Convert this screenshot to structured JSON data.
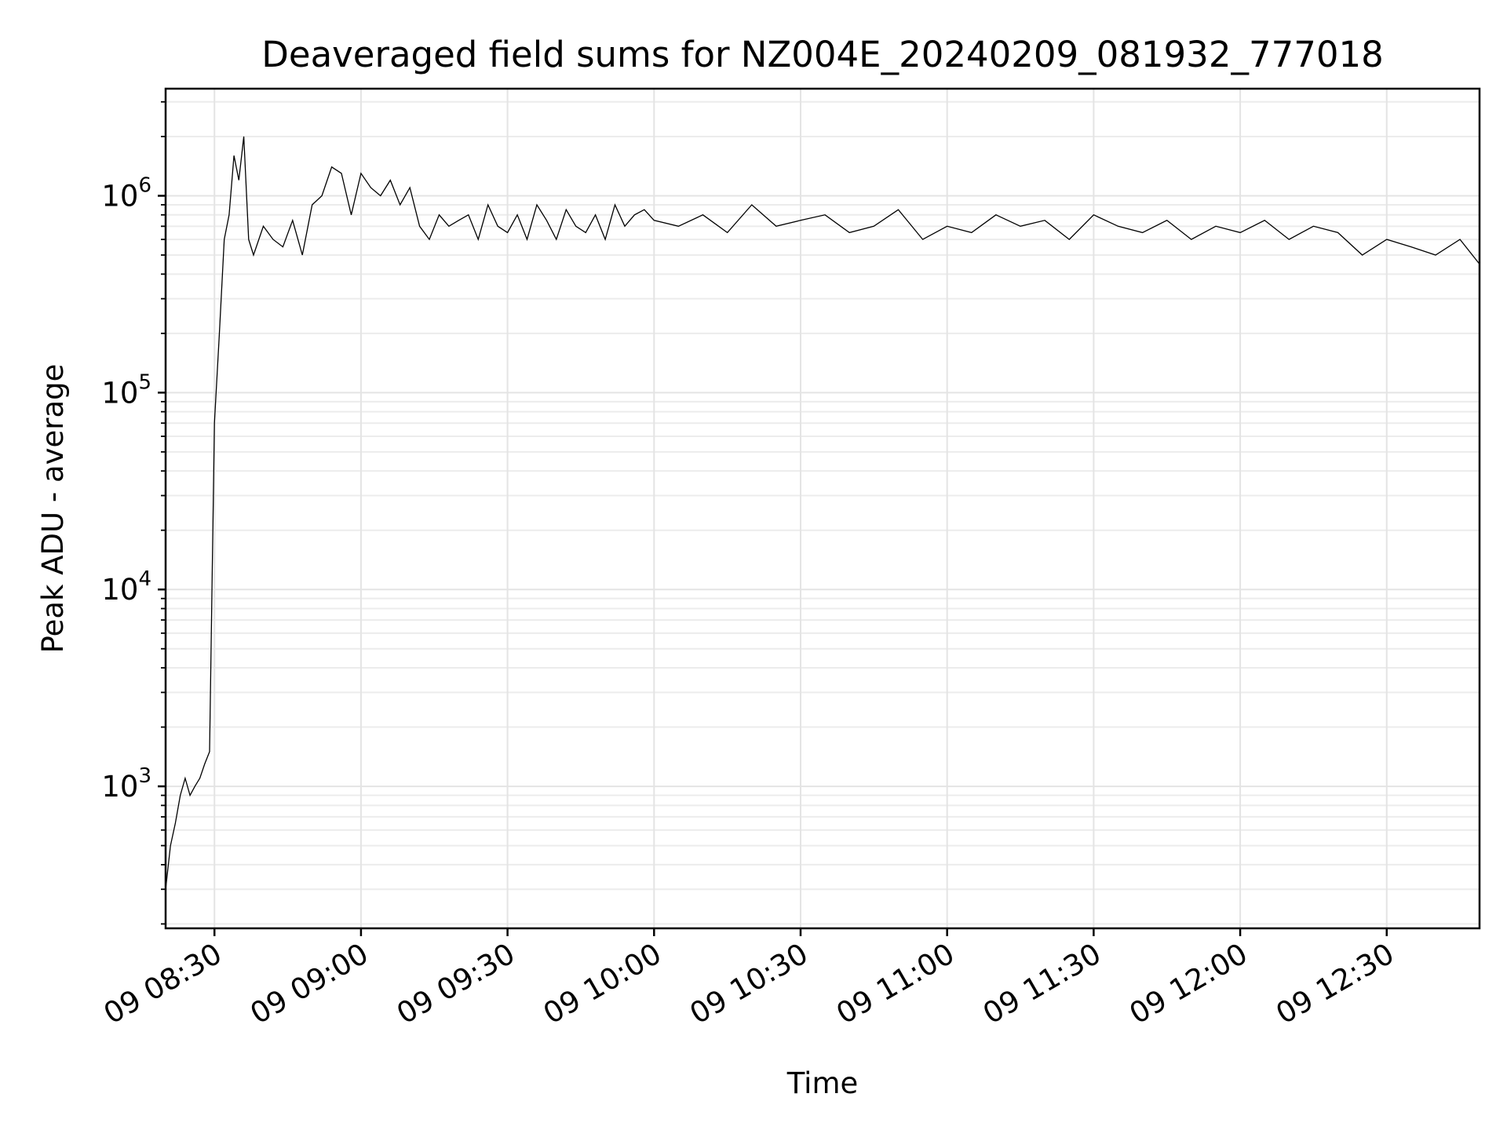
{
  "chart_data": {
    "type": "line",
    "title": "Deaveraged field sums for NZ004E_20240209_081932_777018",
    "xlabel": "Time",
    "ylabel": "Peak ADU - average",
    "y_scale": "log",
    "ylim": [
      190,
      3500000
    ],
    "xlim": [
      "2024-02-09 08:20",
      "2024-02-09 12:49"
    ],
    "x_ticks": [
      "2024-02-09 08:30",
      "2024-02-09 09:00",
      "2024-02-09 09:30",
      "2024-02-09 10:00",
      "2024-02-09 10:30",
      "2024-02-09 11:00",
      "2024-02-09 11:30",
      "2024-02-09 12:00",
      "2024-02-09 12:30"
    ],
    "x_tick_labels": [
      "09 08:30",
      "09 09:00",
      "09 09:30",
      "09 10:00",
      "09 10:30",
      "09 11:00",
      "09 11:30",
      "09 12:00",
      "09 12:30"
    ],
    "y_ticks": [
      1000,
      10000,
      100000,
      1000000
    ],
    "y_tick_labels": [
      {
        "base": "10",
        "exp": "3"
      },
      {
        "base": "10",
        "exp": "4"
      },
      {
        "base": "10",
        "exp": "5"
      },
      {
        "base": "10",
        "exp": "6"
      }
    ],
    "grid": "major and minor",
    "legend": "none",
    "series_color": "#000000",
    "series": [
      {
        "x": [
          "2024-02-09 08:20",
          "2024-02-09 08:21",
          "2024-02-09 08:22",
          "2024-02-09 08:23",
          "2024-02-09 08:24",
          "2024-02-09 08:25",
          "2024-02-09 08:26",
          "2024-02-09 08:27",
          "2024-02-09 08:28",
          "2024-02-09 08:29",
          "2024-02-09 08:30",
          "2024-02-09 08:31",
          "2024-02-09 08:32",
          "2024-02-09 08:33",
          "2024-02-09 08:34",
          "2024-02-09 08:35",
          "2024-02-09 08:36",
          "2024-02-09 08:37",
          "2024-02-09 08:38",
          "2024-02-09 08:40",
          "2024-02-09 08:42",
          "2024-02-09 08:44",
          "2024-02-09 08:46",
          "2024-02-09 08:48",
          "2024-02-09 08:50",
          "2024-02-09 08:52",
          "2024-02-09 08:54",
          "2024-02-09 08:56",
          "2024-02-09 08:58",
          "2024-02-09 09:00",
          "2024-02-09 09:02",
          "2024-02-09 09:04",
          "2024-02-09 09:06",
          "2024-02-09 09:08",
          "2024-02-09 09:10",
          "2024-02-09 09:12",
          "2024-02-09 09:14",
          "2024-02-09 09:16",
          "2024-02-09 09:18",
          "2024-02-09 09:20",
          "2024-02-09 09:22",
          "2024-02-09 09:24",
          "2024-02-09 09:26",
          "2024-02-09 09:28",
          "2024-02-09 09:30",
          "2024-02-09 09:32",
          "2024-02-09 09:34",
          "2024-02-09 09:36",
          "2024-02-09 09:38",
          "2024-02-09 09:40",
          "2024-02-09 09:42",
          "2024-02-09 09:44",
          "2024-02-09 09:46",
          "2024-02-09 09:48",
          "2024-02-09 09:50",
          "2024-02-09 09:52",
          "2024-02-09 09:54",
          "2024-02-09 09:56",
          "2024-02-09 09:58",
          "2024-02-09 10:00",
          "2024-02-09 10:05",
          "2024-02-09 10:10",
          "2024-02-09 10:15",
          "2024-02-09 10:20",
          "2024-02-09 10:25",
          "2024-02-09 10:30",
          "2024-02-09 10:35",
          "2024-02-09 10:40",
          "2024-02-09 10:45",
          "2024-02-09 10:50",
          "2024-02-09 10:55",
          "2024-02-09 11:00",
          "2024-02-09 11:05",
          "2024-02-09 11:10",
          "2024-02-09 11:15",
          "2024-02-09 11:20",
          "2024-02-09 11:25",
          "2024-02-09 11:30",
          "2024-02-09 11:35",
          "2024-02-09 11:40",
          "2024-02-09 11:45",
          "2024-02-09 11:50",
          "2024-02-09 11:55",
          "2024-02-09 12:00",
          "2024-02-09 12:05",
          "2024-02-09 12:10",
          "2024-02-09 12:15",
          "2024-02-09 12:20",
          "2024-02-09 12:25",
          "2024-02-09 12:30",
          "2024-02-09 12:35",
          "2024-02-09 12:40",
          "2024-02-09 12:45",
          "2024-02-09 12:49"
        ],
        "values": [
          300,
          500,
          650,
          900,
          1100,
          900,
          1000,
          1100,
          1300,
          1500,
          70000,
          200000,
          600000,
          800000,
          1600000,
          1200000,
          2000000,
          600000,
          500000,
          700000,
          600000,
          550000,
          750000,
          500000,
          900000,
          1000000,
          1400000,
          1300000,
          800000,
          1300000,
          1100000,
          1000000,
          1200000,
          900000,
          1100000,
          700000,
          600000,
          800000,
          700000,
          750000,
          800000,
          600000,
          900000,
          700000,
          650000,
          800000,
          600000,
          900000,
          750000,
          600000,
          850000,
          700000,
          650000,
          800000,
          600000,
          900000,
          700000,
          800000,
          850000,
          750000,
          700000,
          800000,
          650000,
          900000,
          700000,
          750000,
          800000,
          650000,
          700000,
          850000,
          600000,
          700000,
          650000,
          800000,
          700000,
          750000,
          600000,
          800000,
          700000,
          650000,
          750000,
          600000,
          700000,
          650000,
          750000,
          600000,
          700000,
          650000,
          500000,
          600000,
          550000,
          500000,
          600000,
          450000
        ]
      }
    ]
  }
}
